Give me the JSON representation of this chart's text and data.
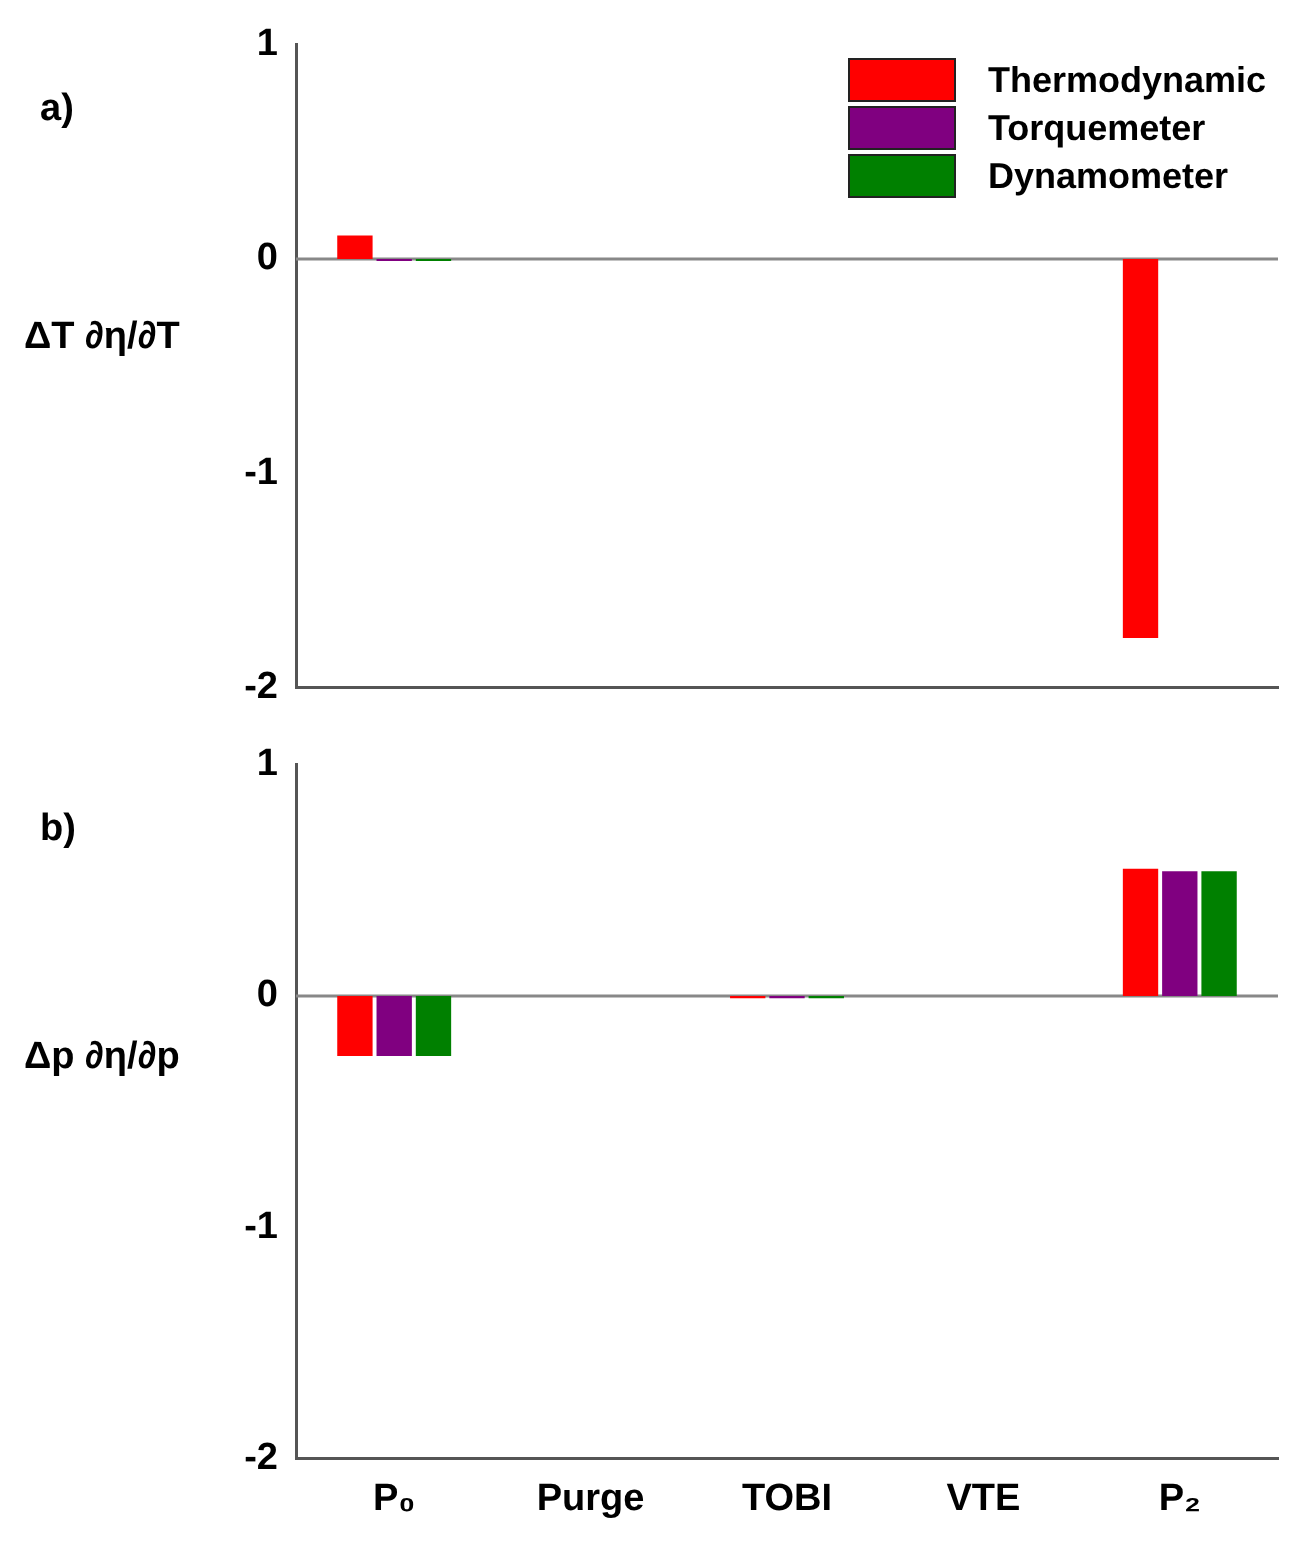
{
  "chart_data": [
    {
      "type": "bar",
      "title": "a)",
      "ylabel": "ΔT ∂η/∂T",
      "categories": [
        null,
        null,
        null,
        null,
        null
      ],
      "series": [
        {
          "name": "Thermodynamic",
          "color": "#ff0000",
          "values": [
            0.11,
            0,
            0,
            0,
            -1.77
          ]
        },
        {
          "name": "Torquemeter",
          "color": "#800080",
          "values": [
            -0.01,
            0,
            0,
            0,
            0
          ]
        },
        {
          "name": "Dynamometer",
          "color": "#008000",
          "values": [
            -0.01,
            0,
            0,
            0,
            0
          ]
        }
      ],
      "ylim": [
        -2,
        1
      ],
      "yticks": [
        -2,
        -1,
        0,
        1
      ],
      "ref_lines": [
        {
          "axis": "y",
          "value": 0
        }
      ],
      "grid": false,
      "legend": "top right",
      "tick_labels": "y"
    },
    {
      "type": "bar",
      "title": "b)",
      "ylabel": "Δp ∂η/∂p",
      "categories": [
        "P₀",
        "Purge",
        "TOBI",
        "VTE",
        "P₂"
      ],
      "series": [
        {
          "color": "#ff0000",
          "values": [
            -0.26,
            0,
            -0.01,
            0,
            0.55
          ]
        },
        {
          "color": "#800080",
          "values": [
            -0.26,
            0,
            -0.01,
            0,
            0.54
          ]
        },
        {
          "color": "#008000",
          "values": [
            -0.26,
            0,
            -0.01,
            0,
            0.54
          ]
        }
      ],
      "ylim": [
        -2,
        1
      ],
      "yticks": [
        -2,
        -1,
        0,
        1
      ],
      "ref_lines": [
        {
          "axis": "y",
          "value": 0
        }
      ],
      "grid": false
    }
  ]
}
